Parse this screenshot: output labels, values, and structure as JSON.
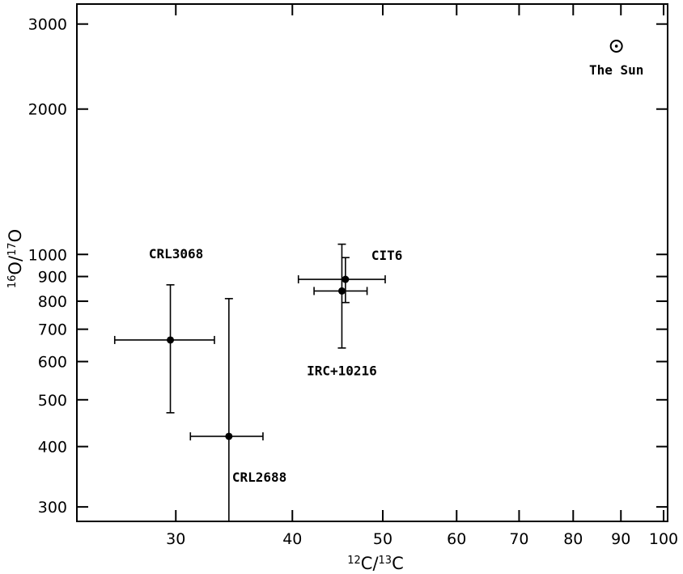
{
  "chart_data": {
    "type": "scatter",
    "xlabel": "12C/13C",
    "ylabel": "16O/17O",
    "xlabel_parts": [
      {
        "text": "12",
        "sup": true
      },
      {
        "text": "C/",
        "sup": false
      },
      {
        "text": "13",
        "sup": true
      },
      {
        "text": "C",
        "sup": false
      }
    ],
    "ylabel_parts": [
      {
        "text": "16",
        "sup": true
      },
      {
        "text": "O/",
        "sup": false
      },
      {
        "text": "17",
        "sup": true
      },
      {
        "text": "O",
        "sup": false
      }
    ],
    "xscale": "log",
    "yscale": "log",
    "xlim": [
      23.5,
      101
    ],
    "ylim": [
      280,
      3300
    ],
    "xticks": [
      30,
      40,
      50,
      60,
      70,
      80,
      90,
      100
    ],
    "xtick_labels": [
      "30",
      "40",
      "50",
      "60",
      "70",
      "80",
      "90",
      "100"
    ],
    "yticks": [
      300,
      400,
      500,
      600,
      700,
      800,
      900,
      1000,
      2000,
      3000
    ],
    "ytick_labels": [
      "300",
      "400",
      "500",
      "600",
      "700",
      "800",
      "900",
      "1000",
      "2000",
      "3000"
    ],
    "grid": false,
    "points": [
      {
        "name": "CRL3068",
        "x": 29.6,
        "y": 665,
        "xerr": [
          25.8,
          33.0
        ],
        "yerr": [
          470,
          865
        ],
        "label": "CRL3068"
      },
      {
        "name": "CRL2688",
        "x": 34.2,
        "y": 420,
        "xerr": [
          31.1,
          37.2
        ],
        "yerr": [
          280,
          810
        ],
        "label": "CRL2688"
      },
      {
        "name": "CIT6",
        "x": 45.6,
        "y": 888,
        "xerr": [
          40.6,
          50.3
        ],
        "yerr": [
          795,
          985
        ],
        "label": "CIT6"
      },
      {
        "name": "IRC+10216",
        "x": 45.2,
        "y": 840,
        "xerr": [
          42.2,
          48.1
        ],
        "yerr": [
          640,
          1050
        ],
        "label": "IRC+10216"
      }
    ],
    "sun": {
      "x": 89,
      "y": 2700,
      "label": "The Sun"
    }
  }
}
